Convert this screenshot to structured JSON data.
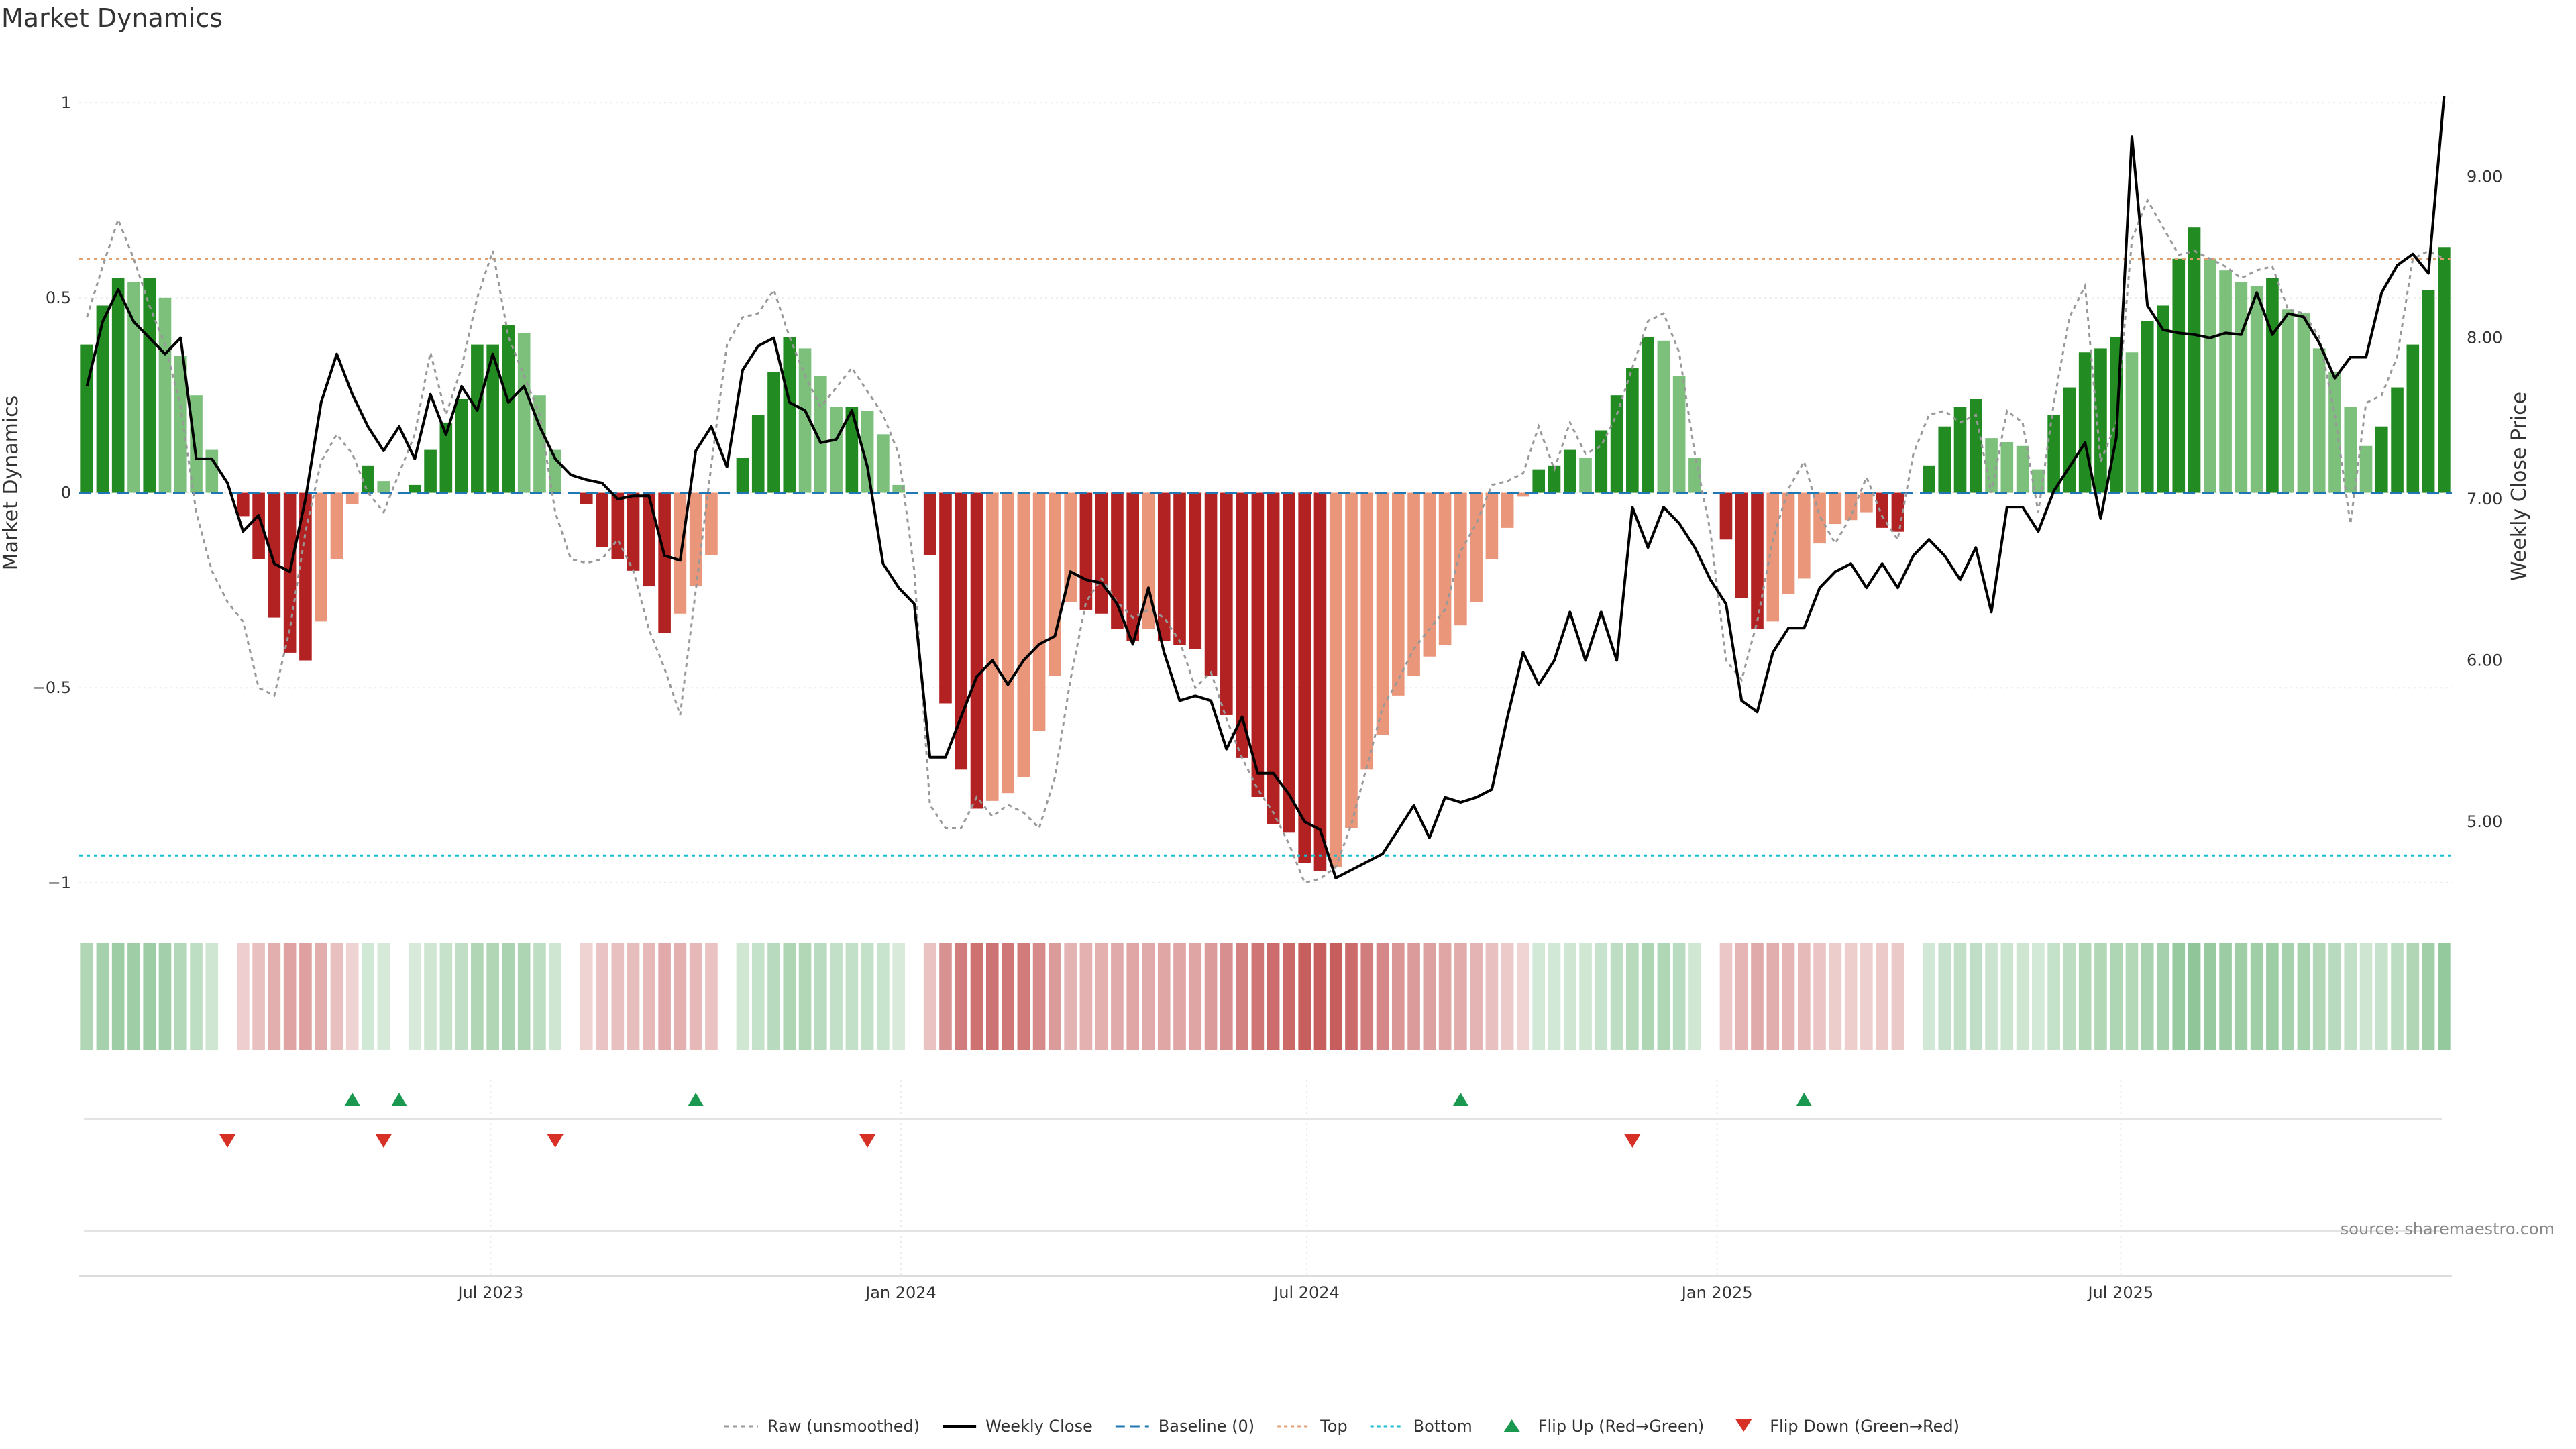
{
  "title": "Market Dynamics",
  "source": "source: sharemaestro.com",
  "chart_data": {
    "type": "bar",
    "x_start": "2023-01-01",
    "x_interval_days": 7,
    "ylabel_left": "Market Dynamics",
    "ylabel_right": "Weekly Close Price",
    "ylim_left": [
      -1.05,
      1.1
    ],
    "ylim_right": [
      4.5,
      9.7
    ],
    "yticks_left": [
      {
        "v": 1,
        "label": "1"
      },
      {
        "v": 0.5,
        "label": "0.5"
      },
      {
        "v": 0,
        "label": "0"
      },
      {
        "v": -0.5,
        "label": "−0.5"
      },
      {
        "v": -1,
        "label": "−1"
      }
    ],
    "yticks_right": [
      {
        "v": 9,
        "label": "9.00"
      },
      {
        "v": 8,
        "label": "8.00"
      },
      {
        "v": 7,
        "label": "7.00"
      },
      {
        "v": 6,
        "label": "6.00"
      },
      {
        "v": 5,
        "label": "5.00"
      }
    ],
    "xticks": [
      {
        "date": "2023-07-01",
        "label": "Jul 2023"
      },
      {
        "date": "2024-01-01",
        "label": "Jan 2024"
      },
      {
        "date": "2024-07-01",
        "label": "Jul 2024"
      },
      {
        "date": "2025-01-01",
        "label": "Jan 2025"
      },
      {
        "date": "2025-07-01",
        "label": "Jul 2025"
      }
    ],
    "top_level": 0.6,
    "bottom_level": -0.93,
    "baseline": 0,
    "colors": {
      "strong_up": "#228b22",
      "weak_up": "#7cc07c",
      "strong_down": "#b22222",
      "weak_down": "#e9967a",
      "raw": "#999999",
      "close": "#000000",
      "baseline": "#1f77b4",
      "top": "#e0a070",
      "bottom": "#17becf",
      "flip_up": "#1a9850",
      "flip_down": "#d73027"
    },
    "dynamics": [
      0.38,
      0.48,
      0.55,
      0.54,
      0.55,
      0.5,
      0.35,
      0.25,
      0.11,
      0,
      -0.06,
      -0.17,
      -0.32,
      -0.41,
      -0.43,
      -0.33,
      -0.17,
      -0.03,
      0.07,
      0.03,
      0,
      0.02,
      0.11,
      0.18,
      0.24,
      0.38,
      0.38,
      0.43,
      0.41,
      0.25,
      0.11,
      0,
      -0.03,
      -0.14,
      -0.17,
      -0.2,
      -0.24,
      -0.36,
      -0.31,
      -0.24,
      -0.16,
      0,
      0.09,
      0.2,
      0.31,
      0.4,
      0.37,
      0.3,
      0.22,
      0.22,
      0.21,
      0.15,
      0.02,
      0,
      -0.16,
      -0.54,
      -0.71,
      -0.81,
      -0.79,
      -0.77,
      -0.73,
      -0.61,
      -0.47,
      -0.28,
      -0.3,
      -0.31,
      -0.35,
      -0.38,
      -0.35,
      -0.38,
      -0.39,
      -0.4,
      -0.47,
      -0.57,
      -0.68,
      -0.78,
      -0.85,
      -0.87,
      -0.95,
      -0.97,
      -0.96,
      -0.86,
      -0.71,
      -0.62,
      -0.52,
      -0.47,
      -0.42,
      -0.39,
      -0.34,
      -0.28,
      -0.17,
      -0.09,
      -0.01,
      0.06,
      0.07,
      0.11,
      0.09,
      0.16,
      0.25,
      0.32,
      0.4,
      0.39,
      0.3,
      0.09,
      0,
      -0.12,
      -0.27,
      -0.35,
      -0.33,
      -0.26,
      -0.22,
      -0.13,
      -0.08,
      -0.07,
      -0.05,
      -0.09,
      -0.1,
      0,
      0.07,
      0.17,
      0.22,
      0.24,
      0.14,
      0.13,
      0.12,
      0.06,
      0.2,
      0.27,
      0.36,
      0.37,
      0.4,
      0.36,
      0.44,
      0.48,
      0.6,
      0.68,
      0.6,
      0.57,
      0.54,
      0.53,
      0.55,
      0.47,
      0.46,
      0.37,
      0.31,
      0.22,
      0.12,
      0.17,
      0.27,
      0.38,
      0.52,
      0.63
    ],
    "raw": [
      0.45,
      0.58,
      0.7,
      0.6,
      0.48,
      0.38,
      0.22,
      -0.05,
      -0.2,
      -0.28,
      -0.33,
      -0.5,
      -0.52,
      -0.35,
      -0.1,
      0.08,
      0.15,
      0.1,
      0,
      -0.05,
      0.05,
      0.15,
      0.36,
      0.2,
      0.32,
      0.5,
      0.62,
      0.4,
      0.3,
      0.2,
      -0.05,
      -0.17,
      -0.18,
      -0.17,
      -0.12,
      -0.2,
      -0.35,
      -0.45,
      -0.57,
      -0.25,
      0.07,
      0.38,
      0.45,
      0.46,
      0.52,
      0.4,
      0.3,
      0.22,
      0.27,
      0.32,
      0.26,
      0.2,
      0.1,
      -0.2,
      -0.8,
      -0.86,
      -0.86,
      -0.78,
      -0.83,
      -0.8,
      -0.82,
      -0.86,
      -0.73,
      -0.48,
      -0.28,
      -0.22,
      -0.28,
      -0.32,
      -0.3,
      -0.32,
      -0.38,
      -0.5,
      -0.46,
      -0.58,
      -0.68,
      -0.76,
      -0.82,
      -0.9,
      -1.0,
      -0.99,
      -0.96,
      -0.85,
      -0.7,
      -0.55,
      -0.48,
      -0.4,
      -0.35,
      -0.3,
      -0.15,
      -0.08,
      0.02,
      0.03,
      0.05,
      0.17,
      0.06,
      0.18,
      0.1,
      0.12,
      0.2,
      0.32,
      0.44,
      0.46,
      0.36,
      0.1,
      -0.1,
      -0.43,
      -0.48,
      -0.33,
      -0.12,
      0.01,
      0.08,
      -0.06,
      -0.13,
      -0.06,
      0.04,
      -0.06,
      -0.12,
      0.1,
      0.2,
      0.21,
      0.18,
      0.2,
      0,
      0.21,
      0.18,
      -0.05,
      0.23,
      0.45,
      0.53,
      0.08,
      0.18,
      0.65,
      0.75,
      0.68,
      0.61,
      0.62,
      0.6,
      0.58,
      0.55,
      0.57,
      0.58,
      0.47,
      0.46,
      0.4,
      0.2,
      -0.08,
      0.23,
      0.25,
      0.35,
      0.6,
      0.62,
      0.6
    ],
    "close": [
      7.7,
      8.1,
      8.3,
      8.1,
      8.0,
      7.9,
      8.0,
      7.25,
      7.25,
      7.1,
      6.8,
      6.9,
      6.6,
      6.55,
      7.0,
      7.6,
      7.9,
      7.65,
      7.45,
      7.3,
      7.45,
      7.25,
      7.65,
      7.4,
      7.7,
      7.55,
      7.9,
      7.6,
      7.7,
      7.45,
      7.25,
      7.15,
      7.12,
      7.1,
      7.0,
      7.02,
      7.02,
      6.65,
      6.62,
      7.3,
      7.45,
      7.2,
      7.8,
      7.95,
      8.0,
      7.6,
      7.55,
      7.35,
      7.37,
      7.55,
      7.2,
      6.6,
      6.45,
      6.35,
      5.4,
      5.4,
      5.65,
      5.9,
      6.0,
      5.85,
      6.0,
      6.1,
      6.15,
      6.55,
      6.5,
      6.48,
      6.35,
      6.1,
      6.45,
      6.05,
      5.75,
      5.78,
      5.75,
      5.45,
      5.65,
      5.3,
      5.3,
      5.17,
      5.0,
      4.95,
      4.65,
      4.7,
      4.75,
      4.8,
      4.95,
      5.1,
      4.9,
      5.15,
      5.12,
      5.15,
      5.2,
      5.65,
      6.05,
      5.85,
      6.0,
      6.3,
      6.0,
      6.3,
      6.0,
      6.95,
      6.7,
      6.95,
      6.85,
      6.7,
      6.5,
      6.35,
      5.75,
      5.68,
      6.05,
      6.2,
      6.2,
      6.45,
      6.55,
      6.6,
      6.45,
      6.6,
      6.45,
      6.65,
      6.75,
      6.65,
      6.5,
      6.7,
      6.3,
      6.95,
      6.95,
      6.8,
      7.05,
      7.2,
      7.35,
      6.88,
      7.38,
      9.25,
      8.2,
      8.05,
      8.03,
      8.02,
      8.0,
      8.03,
      8.02,
      8.28,
      8.02,
      8.15,
      8.13,
      7.97,
      7.75,
      7.88,
      7.88,
      8.28,
      8.45,
      8.52,
      8.4,
      9.5
    ],
    "flip_up": [
      17,
      20,
      39,
      88,
      110
    ],
    "flip_down": [
      9,
      19,
      30,
      50,
      99
    ]
  },
  "legend": [
    {
      "label": "Raw (unsmoothed)",
      "style": "raw"
    },
    {
      "label": "Weekly Close",
      "style": "close"
    },
    {
      "label": "Baseline (0)",
      "style": "baseline"
    },
    {
      "label": "Top",
      "style": "top"
    },
    {
      "label": "Bottom",
      "style": "bottom"
    },
    {
      "label": "Flip Up (Red→Green)",
      "style": "flip_up"
    },
    {
      "label": "Flip Down (Green→Red)",
      "style": "flip_down"
    }
  ]
}
